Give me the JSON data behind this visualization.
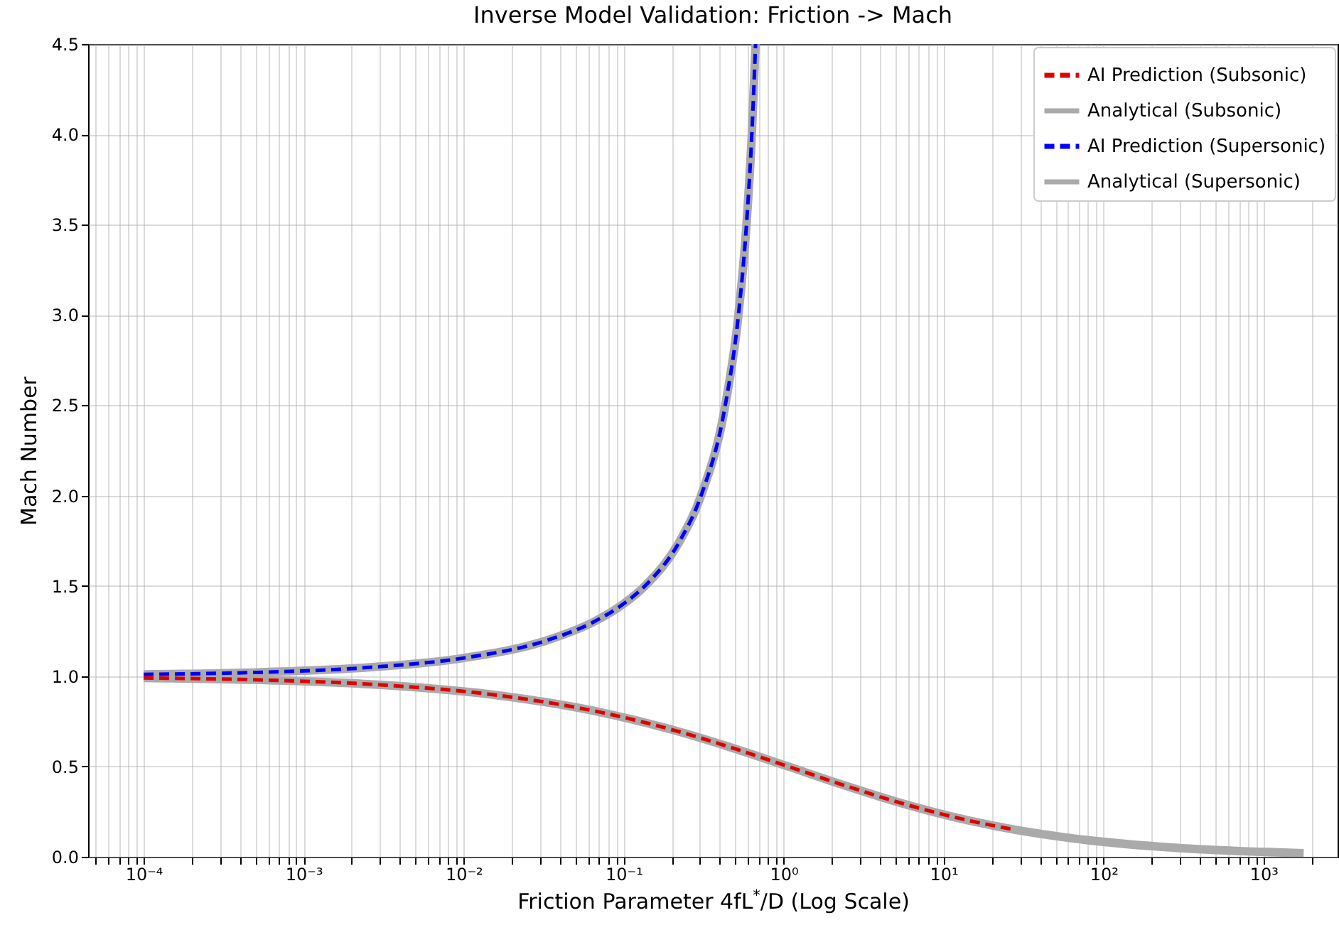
{
  "chart_data": {
    "type": "line",
    "title": "Inverse Model Validation: Friction -> Mach",
    "xlabel": "Friction Parameter 4fL$^{*}$/D (Log Scale)",
    "ylabel": "Mach Number",
    "series": [
      {
        "name": "AI Prediction (Subsonic)",
        "color": "#e00000",
        "line_style": "dashed",
        "x": [
          0.0001,
          0.00049,
          0.0033,
          0.0145,
          0.072,
          0.208,
          0.49,
          1.07,
          2.31,
          5.3,
          14.5,
          27.9
        ],
        "values": [
          0.99,
          0.98,
          0.95,
          0.9,
          0.8,
          0.7,
          0.6,
          0.5,
          0.4,
          0.3,
          0.2,
          0.15
        ]
      },
      {
        "name": "Analytical (Subsonic)",
        "color": "#aaaaaa",
        "line_style": "solid",
        "x": [
          0.0001,
          0.00049,
          0.0033,
          0.0145,
          0.072,
          0.208,
          0.49,
          1.07,
          2.31,
          5.3,
          14.5,
          27.9,
          67,
          280,
          787,
          1780
        ],
        "values": [
          0.99,
          0.98,
          0.95,
          0.9,
          0.8,
          0.7,
          0.6,
          0.5,
          0.4,
          0.3,
          0.2,
          0.15,
          0.1,
          0.05,
          0.03,
          0.02
        ]
      },
      {
        "name": "AI Prediction (Supersonic)",
        "color": "#0000ff",
        "line_style": "dashed",
        "x": [
          0.0001,
          0.00046,
          0.0027,
          0.0099,
          0.0336,
          0.0648,
          0.0997,
          0.136,
          0.225,
          0.305,
          0.432,
          0.522,
          0.586,
          0.633,
          0.668
        ],
        "values": [
          1.01,
          1.02,
          1.05,
          1.1,
          1.2,
          1.3,
          1.4,
          1.5,
          1.75,
          2.0,
          2.5,
          3.0,
          3.5,
          4.0,
          4.5
        ]
      },
      {
        "name": "Analytical (Supersonic)",
        "color": "#aaaaaa",
        "line_style": "solid",
        "x": [
          0.0001,
          0.00046,
          0.0027,
          0.0099,
          0.0336,
          0.0648,
          0.0997,
          0.136,
          0.225,
          0.305,
          0.432,
          0.522,
          0.586,
          0.633,
          0.668
        ],
        "values": [
          1.01,
          1.02,
          1.05,
          1.1,
          1.2,
          1.3,
          1.4,
          1.5,
          1.75,
          2.0,
          2.5,
          3.0,
          3.5,
          4.0,
          4.5
        ]
      }
    ],
    "log": "x",
    "xlim": [
      4.5e-05,
      2900
    ],
    "ylim": [
      0,
      4.5
    ],
    "xticks": [
      {
        "value": 5e-05,
        "label": null
      },
      {
        "value": 6e-05,
        "label": null
      },
      {
        "value": 7e-05,
        "label": null
      },
      {
        "value": 8e-05,
        "label": null
      },
      {
        "value": 9e-05,
        "label": null
      },
      {
        "value": 0.0001,
        "label": "10⁻⁴"
      },
      {
        "value": 0.0002,
        "label": null
      },
      {
        "value": 0.0003,
        "label": null
      },
      {
        "value": 0.0004,
        "label": null
      },
      {
        "value": 0.0005,
        "label": null
      },
      {
        "value": 0.0006,
        "label": null
      },
      {
        "value": 0.0007,
        "label": null
      },
      {
        "value": 0.0008,
        "label": null
      },
      {
        "value": 0.0009,
        "label": null
      },
      {
        "value": 0.001,
        "label": "10⁻³"
      },
      {
        "value": 0.002,
        "label": null
      },
      {
        "value": 0.003,
        "label": null
      },
      {
        "value": 0.004,
        "label": null
      },
      {
        "value": 0.005,
        "label": null
      },
      {
        "value": 0.006,
        "label": null
      },
      {
        "value": 0.007,
        "label": null
      },
      {
        "value": 0.008,
        "label": null
      },
      {
        "value": 0.009,
        "label": null
      },
      {
        "value": 0.01,
        "label": "10⁻²"
      },
      {
        "value": 0.02,
        "label": null
      },
      {
        "value": 0.03,
        "label": null
      },
      {
        "value": 0.04,
        "label": null
      },
      {
        "value": 0.05,
        "label": null
      },
      {
        "value": 0.06,
        "label": null
      },
      {
        "value": 0.07,
        "label": null
      },
      {
        "value": 0.08,
        "label": null
      },
      {
        "value": 0.09,
        "label": null
      },
      {
        "value": 0.1,
        "label": "10⁻¹"
      },
      {
        "value": 0.2,
        "label": null
      },
      {
        "value": 0.3,
        "label": null
      },
      {
        "value": 0.4,
        "label": null
      },
      {
        "value": 0.5,
        "label": null
      },
      {
        "value": 0.6,
        "label": null
      },
      {
        "value": 0.7,
        "label": null
      },
      {
        "value": 0.8,
        "label": null
      },
      {
        "value": 0.9,
        "label": null
      },
      {
        "value": 1,
        "label": "10⁰"
      },
      {
        "value": 2,
        "label": null
      },
      {
        "value": 3,
        "label": null
      },
      {
        "value": 4,
        "label": null
      },
      {
        "value": 5,
        "label": null
      },
      {
        "value": 6,
        "label": null
      },
      {
        "value": 7,
        "label": null
      },
      {
        "value": 8,
        "label": null
      },
      {
        "value": 9,
        "label": null
      },
      {
        "value": 10,
        "label": "10¹"
      },
      {
        "value": 20,
        "label": null
      },
      {
        "value": 30,
        "label": null
      },
      {
        "value": 40,
        "label": null
      },
      {
        "value": 50,
        "label": null
      },
      {
        "value": 60,
        "label": null
      },
      {
        "value": 70,
        "label": null
      },
      {
        "value": 80,
        "label": null
      },
      {
        "value": 90,
        "label": null
      },
      {
        "value": 100,
        "label": "10²"
      },
      {
        "value": 200,
        "label": null
      },
      {
        "value": 300,
        "label": null
      },
      {
        "value": 400,
        "label": null
      },
      {
        "value": 500,
        "label": null
      },
      {
        "value": 600,
        "label": null
      },
      {
        "value": 700,
        "label": null
      },
      {
        "value": 800,
        "label": null
      },
      {
        "value": 900,
        "label": null
      },
      {
        "value": 1000,
        "label": "10³"
      },
      {
        "value": 2000,
        "label": null
      }
    ],
    "yticks": [
      {
        "value": 0,
        "label": "0.0"
      },
      0.5,
      {
        "value": 1,
        "label": "1.0"
      },
      1.5,
      {
        "value": 2,
        "label": "2.0"
      },
      2.5,
      {
        "value": 3,
        "label": "3.0"
      },
      3.5,
      {
        "value": 4,
        "label": "4.0"
      },
      4.5
    ],
    "grid": true,
    "legend": "top right"
  }
}
